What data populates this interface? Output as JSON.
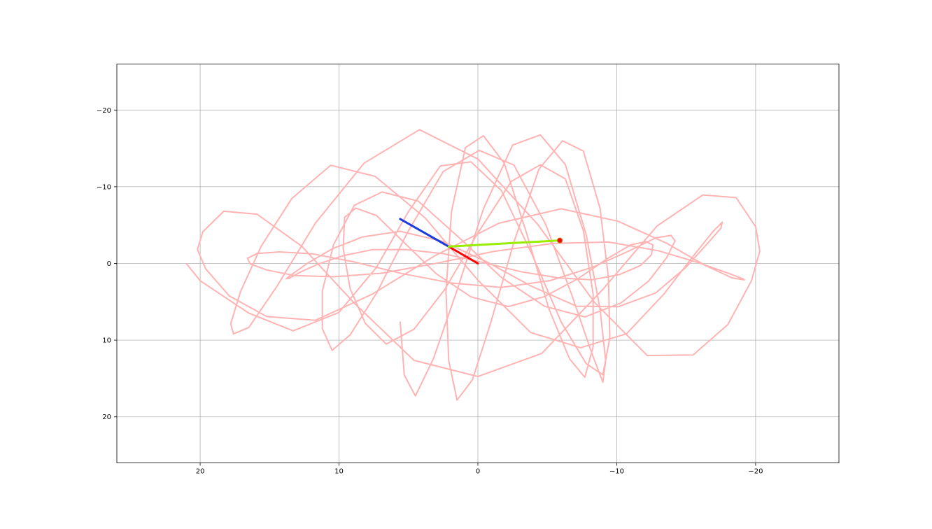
{
  "chart_data": {
    "type": "line",
    "title": "",
    "xlabel": "",
    "ylabel": "",
    "xlim": [
      26,
      -26
    ],
    "ylim": [
      26,
      -26
    ],
    "x_inverted": true,
    "y_inverted": true,
    "grid": true,
    "xticks": [
      20,
      10,
      0,
      -10,
      -20
    ],
    "yticks": [
      -20,
      -10,
      0,
      10,
      20
    ],
    "xtick_labels": [
      "20",
      "10",
      "0",
      "−10",
      "−20"
    ],
    "ytick_labels": [
      "−20",
      "−10",
      "0",
      "10",
      "20"
    ],
    "series": [
      {
        "color": "#ffb3b3",
        "x": [
          21,
          20,
          16.5,
          13.3,
          10.0,
          7.3,
          5.0,
          2.7,
          0.5,
          -1.7,
          -3.9,
          -6.0,
          -7.8,
          -9.0,
          -9.5,
          -9.4,
          -8.8,
          -7.6,
          -6.1,
          -4.4,
          -2.6,
          -0.9,
          0.4,
          1.5,
          2.1,
          2.3,
          1.9,
          0.9,
          -0.4,
          -1.9,
          -3.5,
          -5.1,
          -6.6,
          -7.7,
          -8.3,
          -8.3,
          -7.6,
          -6.3,
          -4.5,
          -2.4,
          0.0,
          2.4,
          4.6,
          6.6,
          8.1,
          9.2,
          9.7,
          9.6,
          8.8,
          7.3,
          5.3,
          3.0,
          0.5,
          -2.2,
          -4.8,
          -7.2,
          -9.3,
          -11.0,
          -12.1,
          -12.6,
          -12.5,
          -11.7,
          -10.2,
          -8.2,
          -5.8,
          -3.1,
          -0.3,
          2.5,
          5.2,
          7.6,
          9.7,
          11.5,
          12.8,
          13.6,
          13.8,
          13.4,
          12.3,
          10.5,
          8.3,
          5.6,
          2.6,
          -0.6,
          -3.9,
          -7.1,
          -10.1,
          -12.8,
          -15.0,
          -16.6,
          -17.5,
          -17.6,
          -16.9,
          -15.5,
          -13.4,
          -10.7,
          -7.4,
          -3.8,
          0.0,
          3.8,
          7.4,
          10.6,
          13.4,
          15.6,
          17.1,
          17.8,
          17.6,
          16.5,
          14.5,
          11.7,
          8.2,
          4.2,
          0.0,
          -4.3,
          -8.4,
          -12.2,
          -15.5,
          -18.0,
          -19.7,
          -20.3,
          -20.0,
          -18.6,
          -16.2,
          -12.9,
          -9.0,
          -4.6,
          0.0,
          4.6,
          8.9,
          12.7,
          15.9,
          18.3,
          19.8,
          20.2,
          19.6,
          17.9,
          15.2,
          11.7,
          7.6,
          3.1,
          -1.5,
          -6.0,
          -10.1,
          -13.6,
          -16.4,
          -18.3,
          -19.2,
          -19.1,
          -18.0,
          -15.9,
          -13.0,
          -9.4,
          -5.4,
          -1.2,
          3.0,
          6.9,
          10.4,
          13.2,
          15.2,
          16.4,
          16.6,
          15.9,
          14.3,
          11.9,
          8.9,
          5.5,
          1.9,
          -1.7,
          -5.2,
          -8.3,
          -10.9,
          -12.8,
          -13.9,
          -14.2,
          -13.6,
          -12.3,
          -10.3,
          -7.7,
          -4.8,
          -1.7,
          1.4,
          4.3,
          6.9,
          8.9,
          10.4,
          11.2,
          11.2,
          10.5,
          9.2,
          7.3,
          5.0,
          2.5,
          -0.1,
          -2.6,
          -4.9,
          -6.8,
          -8.2,
          -9.0,
          -9.2,
          -8.8,
          -7.8,
          -6.3,
          -4.5,
          -2.5,
          -0.4,
          1.5,
          3.2,
          4.5,
          5.3,
          5.6
        ]
      }
    ],
    "arms": [
      {
        "name": "",
        "color": "#ff0000",
        "x": [
          0,
          2.1
        ],
        "y": [
          0,
          -2.2
        ]
      },
      {
        "name": "",
        "color": "#1a3cdc",
        "x": [
          2.1,
          5.6
        ],
        "y": [
          -2.2,
          -5.8
        ]
      },
      {
        "name": "",
        "color": "#99ee00",
        "x": [
          2.1,
          -5.9
        ],
        "y": [
          -2.2,
          -3.0
        ]
      }
    ],
    "marker": {
      "color": "#ff0000",
      "edge": "#cc6600",
      "x": -5.9,
      "y": -3.0
    }
  }
}
